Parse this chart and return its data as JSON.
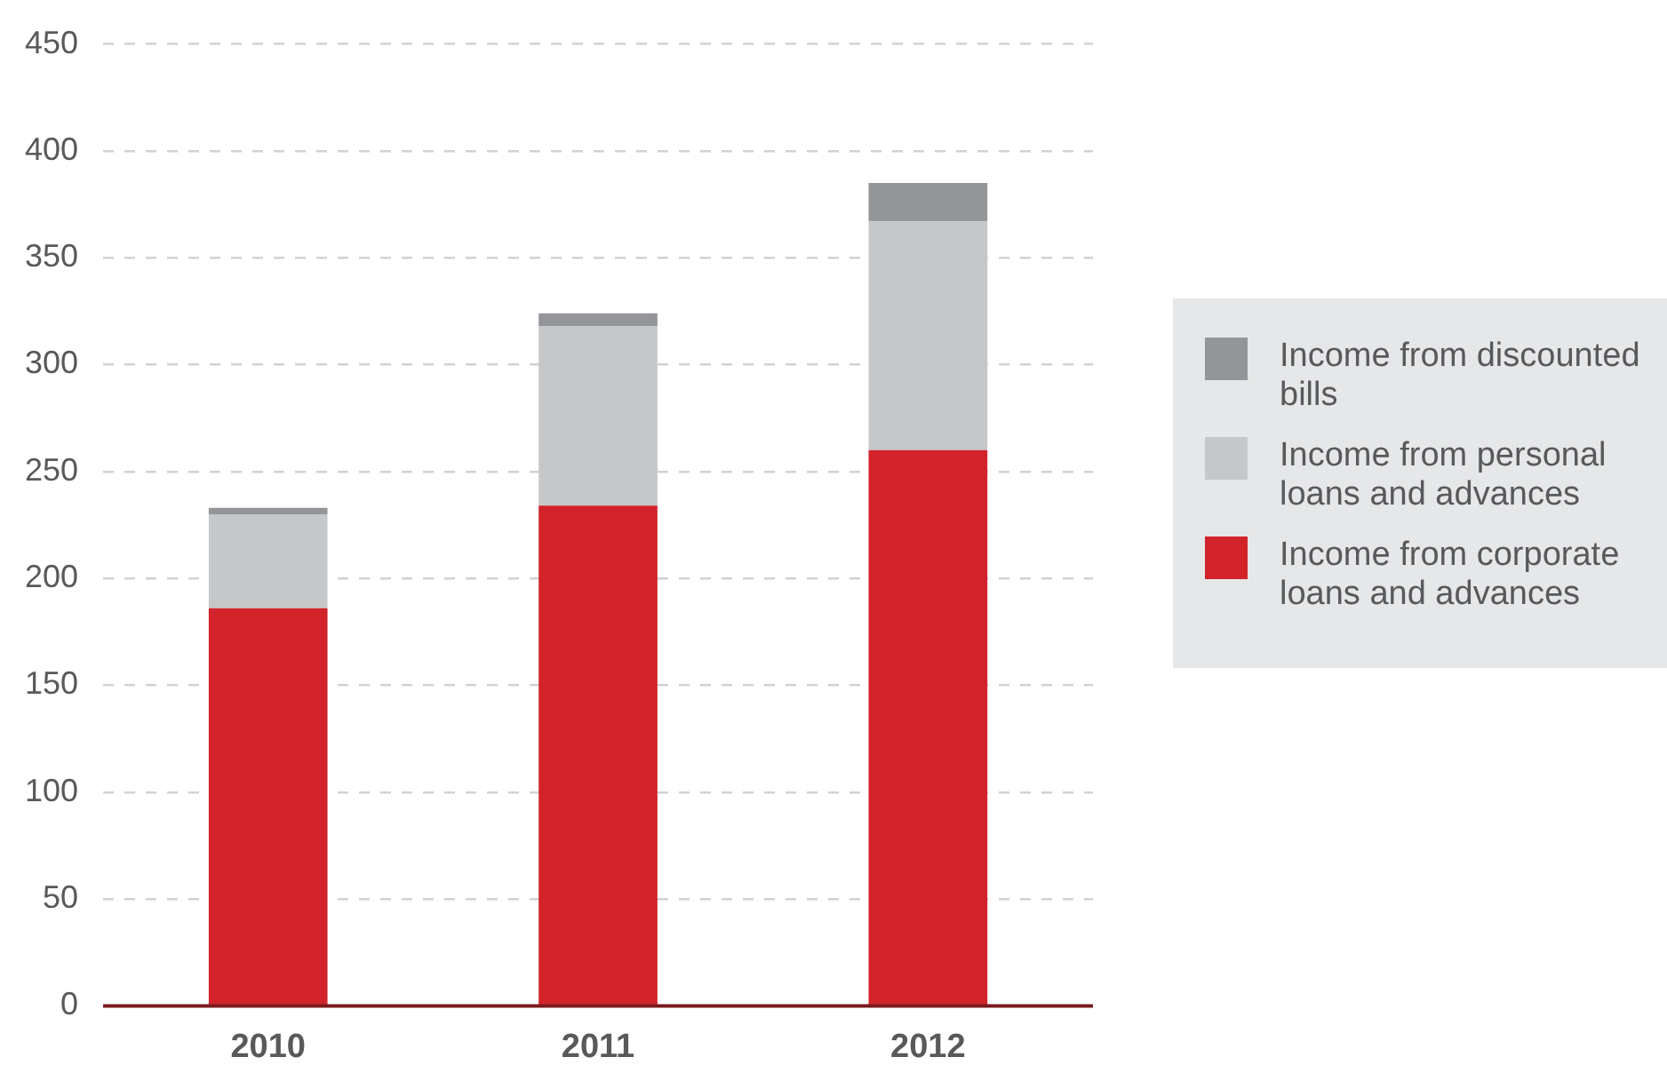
{
  "chart_data": {
    "type": "bar",
    "stacked": true,
    "categories": [
      "2010",
      "2011",
      "2012"
    ],
    "series": [
      {
        "name": "Income from corporate loans and advances",
        "color": "#d2232a",
        "values": [
          186,
          234,
          260
        ]
      },
      {
        "name": "Income from personal loans and advances",
        "color": "#c6c7c9",
        "values": [
          44,
          84,
          107
        ]
      },
      {
        "name": "Income from discounted bills",
        "color": "#939598",
        "values": [
          3,
          6,
          18
        ]
      }
    ],
    "ylim": [
      0,
      450
    ],
    "yticks": [
      0,
      50,
      100,
      150,
      200,
      250,
      300,
      350,
      400,
      450
    ],
    "grid": "y",
    "legend": "right"
  }
}
